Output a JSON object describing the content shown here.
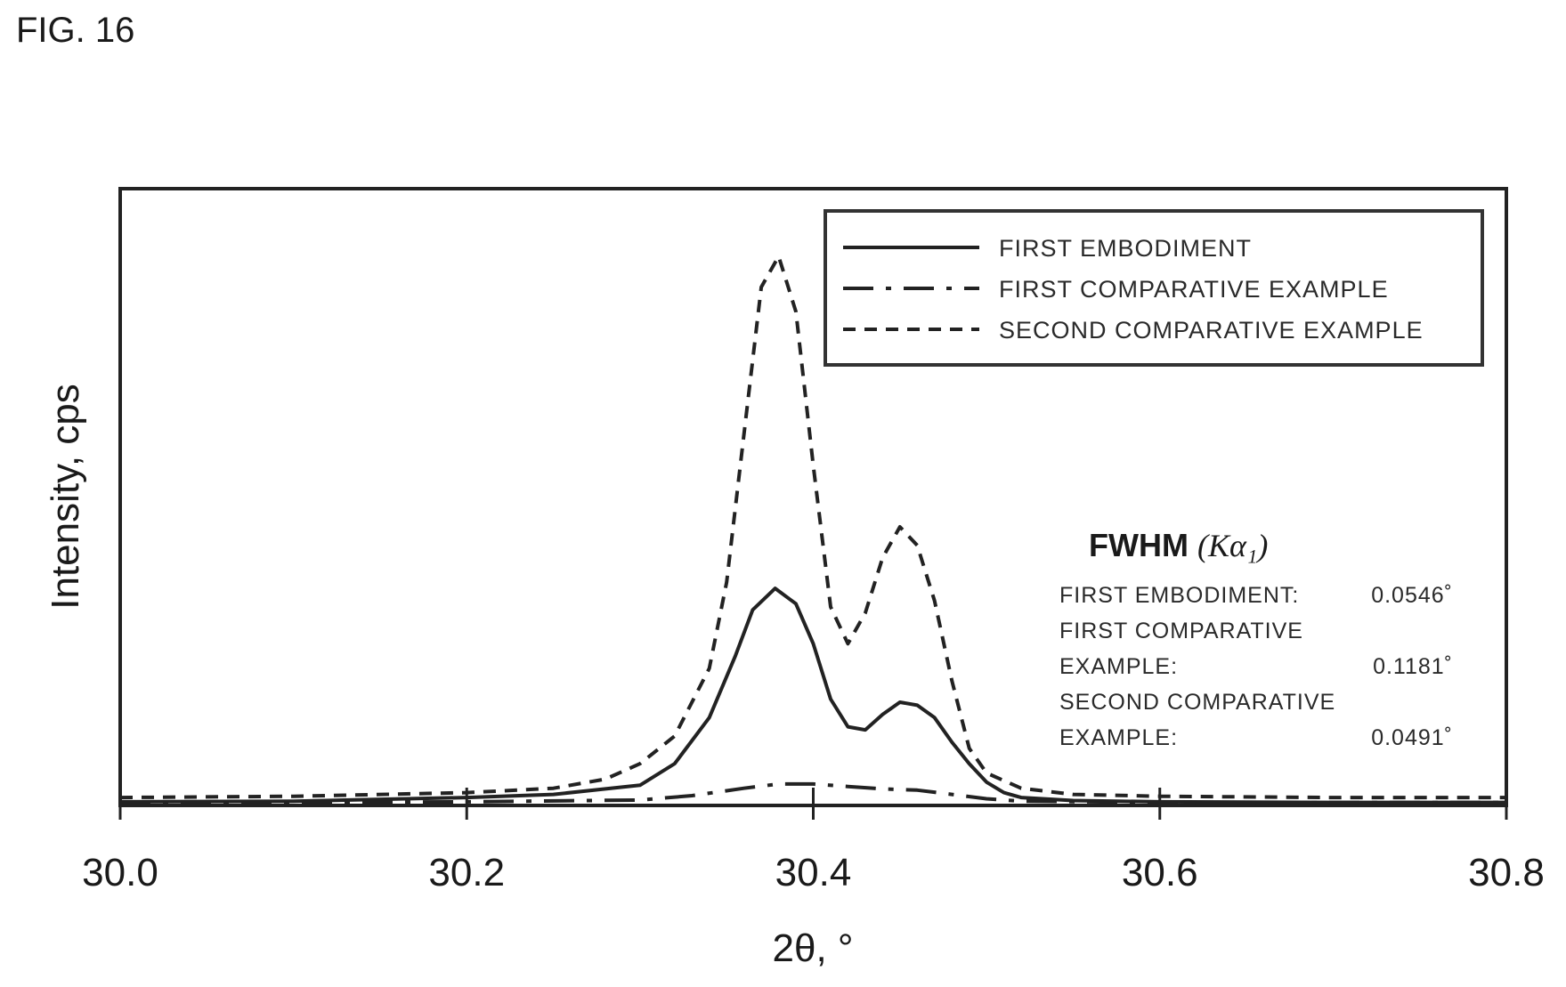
{
  "figure_label": "FIG. 16",
  "chart_data": {
    "type": "line",
    "title": "",
    "xlabel": "2θ, °",
    "ylabel": "Intensity, cps",
    "xlim": [
      30.0,
      30.8
    ],
    "ylim": [
      0,
      100
    ],
    "y_ticks_shown": false,
    "grid": false,
    "legend_position": "top-right",
    "x_ticks": [
      "30.0",
      "30.2",
      "30.4",
      "30.6",
      "30.8"
    ],
    "x_tick_values": [
      30.0,
      30.2,
      30.4,
      30.6,
      30.8
    ],
    "series": [
      {
        "name": "FIRST EMBODIMENT",
        "style": "solid",
        "x": [
          30.0,
          30.1,
          30.2,
          30.25,
          30.3,
          30.32,
          30.34,
          30.355,
          30.365,
          30.378,
          30.39,
          30.4,
          30.41,
          30.42,
          30.43,
          30.44,
          30.45,
          30.46,
          30.47,
          30.48,
          30.49,
          30.5,
          30.51,
          30.52,
          30.55,
          30.6,
          30.7,
          30.8
        ],
        "y": [
          0.3,
          0.4,
          1.0,
          1.5,
          3.0,
          6.5,
          14.0,
          24.0,
          31.5,
          35.0,
          32.5,
          26.0,
          17.0,
          12.5,
          12.0,
          14.5,
          16.5,
          16.0,
          14.0,
          10.0,
          6.5,
          3.5,
          1.8,
          1.0,
          0.5,
          0.3,
          0.2,
          0.2
        ]
      },
      {
        "name": "FIRST COMPARATIVE EXAMPLE",
        "style": "dash-dot",
        "x": [
          30.0,
          30.1,
          30.2,
          30.3,
          30.33,
          30.36,
          30.38,
          30.4,
          30.42,
          30.44,
          30.46,
          30.48,
          30.5,
          30.52,
          30.6,
          30.7,
          30.8
        ],
        "y": [
          0.2,
          0.2,
          0.3,
          0.6,
          1.3,
          2.5,
          3.2,
          3.2,
          2.8,
          2.4,
          2.2,
          1.5,
          0.8,
          0.4,
          0.2,
          0.2,
          0.2
        ]
      },
      {
        "name": "SECOND COMPARATIVE EXAMPLE",
        "style": "dashed",
        "x": [
          30.0,
          30.1,
          30.2,
          30.25,
          30.28,
          30.3,
          30.32,
          30.34,
          30.35,
          30.36,
          30.37,
          30.38,
          30.39,
          30.4,
          30.41,
          30.42,
          30.43,
          30.44,
          30.45,
          30.46,
          30.47,
          30.48,
          30.49,
          30.5,
          30.52,
          30.55,
          30.6,
          30.7,
          30.8
        ],
        "y": [
          1.0,
          1.2,
          1.8,
          2.5,
          4.0,
          6.5,
          11.0,
          22.0,
          36.0,
          60.0,
          84.0,
          89.0,
          80.0,
          55.0,
          32.0,
          26.0,
          31.0,
          40.0,
          45.0,
          42.0,
          33.0,
          20.0,
          9.0,
          5.0,
          2.5,
          1.5,
          1.2,
          1.0,
          1.0
        ]
      }
    ],
    "annotation": {
      "title": "FWHM",
      "title_symbol": "(Kα₁)",
      "rows": [
        {
          "label": "FIRST EMBODIMENT:",
          "value": "0.0546˚"
        },
        {
          "label": "FIRST COMPARATIVE",
          "value": ""
        },
        {
          "label": "EXAMPLE:",
          "value": "0.1181˚"
        },
        {
          "label": "SECOND COMPARATIVE",
          "value": ""
        },
        {
          "label": "EXAMPLE:",
          "value": "0.0491˚"
        }
      ]
    }
  }
}
